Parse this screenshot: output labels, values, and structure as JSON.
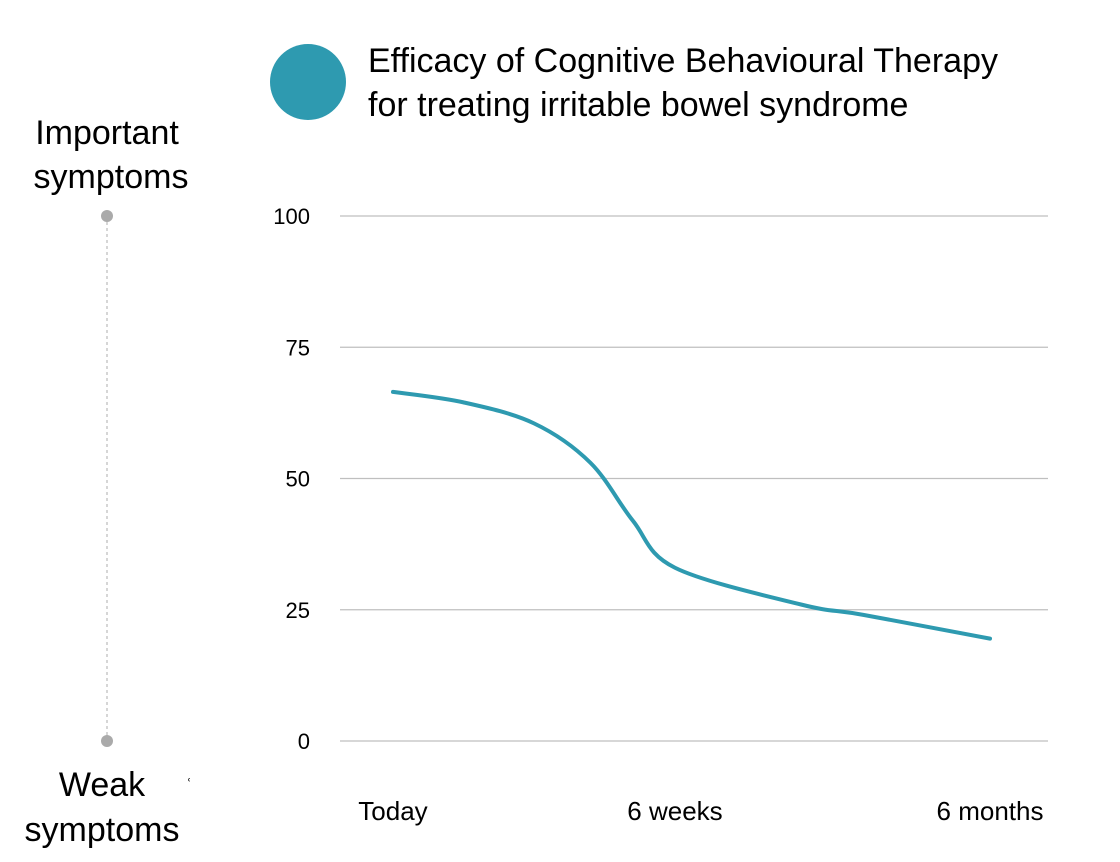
{
  "legend": {
    "marker_color": "#2E9AB0",
    "title_lines": [
      "Efficacy of Cognitive Behavioural Therapy",
      "for treating irritable bowel syndrome"
    ]
  },
  "severity_scale": {
    "top_lines": [
      "Important",
      "symptoms"
    ],
    "bottom_lines": [
      "Weak",
      "symptoms"
    ],
    "stray_mark": "ʿ",
    "line_color": "#C8C8C8",
    "dot_color": "#AAAAAA"
  },
  "chart_data": {
    "type": "line",
    "title": "",
    "xlabel": "",
    "ylabel": "",
    "ylim": [
      0,
      100
    ],
    "yticks": [
      0,
      25,
      50,
      75,
      100
    ],
    "grid": true,
    "categories": [
      "Today",
      "6 weeks",
      "6 months"
    ],
    "series": [
      {
        "color": "#2E9AB0",
        "x": [
          0,
          0.25,
          0.5,
          0.7,
          0.85,
          1.0,
          1.4,
          1.6,
          2.0
        ],
        "values": [
          66.5,
          64.5,
          60.5,
          53,
          42,
          33,
          26,
          24,
          19.5
        ]
      }
    ]
  },
  "colors": {
    "grid": "#BFBFBF",
    "line": "#2E9AB0"
  }
}
